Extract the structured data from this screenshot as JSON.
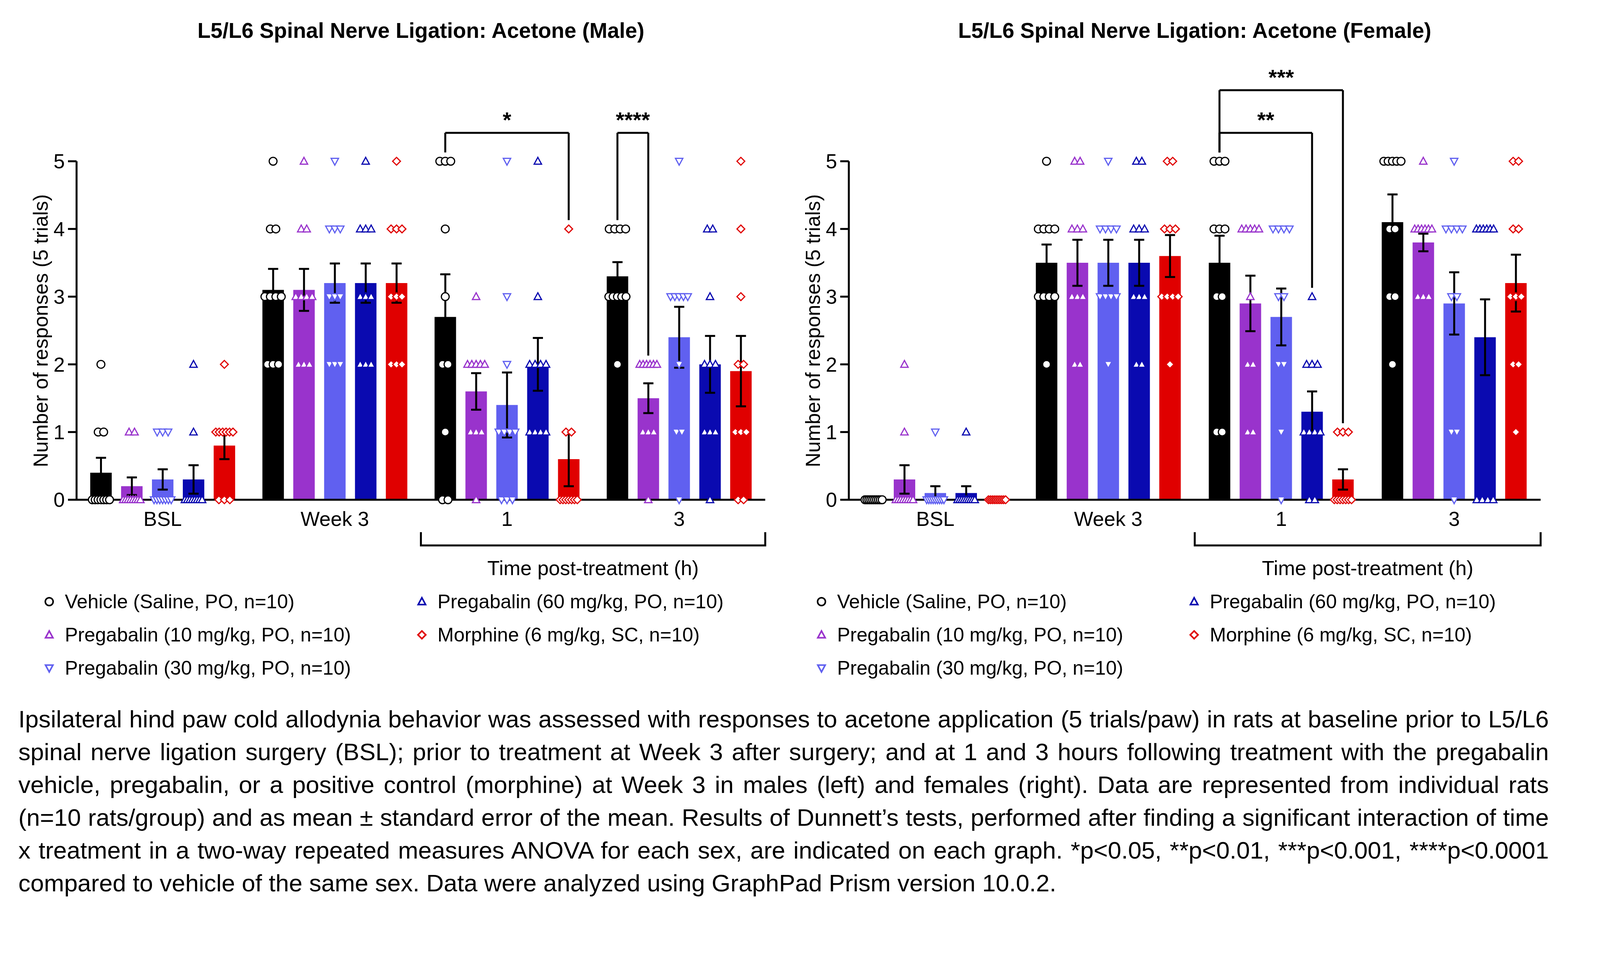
{
  "chart_data": [
    {
      "type": "bar",
      "title": "L5/L6 Spinal Nerve Ligation: Acetone (Male)",
      "y_label": "Number of responses (5 trials)",
      "x_label": "Time post-treatment (h)",
      "x_label_categories": [
        "1",
        "3"
      ],
      "categories": [
        "BSL",
        "Week 3",
        "1",
        "3"
      ],
      "ylim": [
        0,
        5
      ],
      "yticks": [
        0,
        1,
        2,
        3,
        4,
        5
      ],
      "grid": false,
      "legend": "bottom",
      "series": [
        {
          "name": "Vehicle (Saline, PO, n=10)",
          "color": "#000000",
          "marker": "circle",
          "values": [
            0.4,
            3.1,
            2.7,
            3.3
          ],
          "errors": [
            0.22,
            0.31,
            0.63,
            0.21
          ],
          "points": [
            [
              2,
              1,
              1,
              0,
              0,
              0,
              0,
              0,
              0,
              0
            ],
            [
              5,
              4,
              4,
              3,
              3,
              3,
              3,
              2,
              2,
              2
            ],
            [
              5,
              5,
              5,
              4,
              3,
              2,
              2,
              1,
              0,
              0
            ],
            [
              4,
              4,
              4,
              4,
              3,
              3,
              3,
              3,
              3,
              2
            ]
          ]
        },
        {
          "name": "Pregabalin (10 mg/kg, PO, n=10)",
          "color": "#9933cc",
          "marker": "triangle",
          "values": [
            0.2,
            3.1,
            1.6,
            1.5
          ],
          "errors": [
            0.13,
            0.31,
            0.27,
            0.22
          ],
          "points": [
            [
              1,
              1,
              0,
              0,
              0,
              0,
              0,
              0,
              0,
              0
            ],
            [
              5,
              4,
              4,
              3,
              3,
              3,
              3,
              2,
              2,
              2
            ],
            [
              3,
              2,
              2,
              2,
              2,
              2,
              1,
              1,
              1,
              0
            ],
            [
              2,
              2,
              2,
              2,
              2,
              2,
              1,
              1,
              1,
              0
            ]
          ]
        },
        {
          "name": "Pregabalin (30 mg/kg, PO, n=10)",
          "color": "#6060f0",
          "marker": "triangle-down",
          "values": [
            0.3,
            3.2,
            1.4,
            2.4
          ],
          "errors": [
            0.15,
            0.29,
            0.48,
            0.45
          ],
          "points": [
            [
              1,
              1,
              1,
              0,
              0,
              0,
              0,
              0,
              0,
              0
            ],
            [
              5,
              4,
              4,
              4,
              3,
              3,
              3,
              2,
              2,
              2
            ],
            [
              5,
              3,
              2,
              1,
              1,
              1,
              1,
              0,
              0,
              0
            ],
            [
              5,
              3,
              3,
              3,
              3,
              3,
              2,
              1,
              1,
              0
            ]
          ]
        },
        {
          "name": "Pregabalin (60 mg/kg, PO, n=10)",
          "color": "#0a0ab0",
          "marker": "triangle",
          "values": [
            0.3,
            3.2,
            2.0,
            2.0
          ],
          "errors": [
            0.21,
            0.29,
            0.39,
            0.42
          ],
          "points": [
            [
              2,
              1,
              0,
              0,
              0,
              0,
              0,
              0,
              0,
              0
            ],
            [
              5,
              4,
              4,
              4,
              3,
              3,
              3,
              2,
              2,
              2
            ],
            [
              5,
              3,
              2,
              2,
              2,
              2,
              1,
              1,
              1,
              1
            ],
            [
              4,
              4,
              3,
              2,
              2,
              2,
              1,
              1,
              1,
              0
            ]
          ]
        },
        {
          "name": "Morphine (6 mg/kg, SC, n=10)",
          "color": "#e00000",
          "marker": "diamond",
          "values": [
            0.8,
            3.2,
            0.6,
            1.9
          ],
          "errors": [
            0.2,
            0.29,
            0.4,
            0.52
          ],
          "points": [
            [
              2,
              1,
              1,
              1,
              1,
              1,
              1,
              0,
              0,
              0
            ],
            [
              5,
              4,
              4,
              4,
              3,
              3,
              3,
              2,
              2,
              2
            ],
            [
              4,
              1,
              1,
              0,
              0,
              0,
              0,
              0,
              0,
              0
            ],
            [
              5,
              4,
              3,
              2,
              2,
              1,
              1,
              1,
              0,
              0
            ]
          ]
        }
      ],
      "annotations": [
        {
          "text": "*",
          "category": "1",
          "series": [
            "Vehicle (Saline, PO, n=10)",
            "Morphine (6 mg/kg, SC, n=10)"
          ]
        },
        {
          "text": "****",
          "category": "3",
          "series": [
            "Vehicle (Saline, PO, n=10)",
            "Pregabalin (10 mg/kg, PO, n=10)"
          ]
        }
      ]
    },
    {
      "type": "bar",
      "title": "L5/L6 Spinal Nerve Ligation: Acetone (Female)",
      "y_label": "Number of responses (5 trials)",
      "x_label": "Time post-treatment (h)",
      "x_label_categories": [
        "1",
        "3"
      ],
      "categories": [
        "BSL",
        "Week 3",
        "1",
        "3"
      ],
      "ylim": [
        0,
        5
      ],
      "yticks": [
        0,
        1,
        2,
        3,
        4,
        5
      ],
      "grid": false,
      "legend": "bottom",
      "series": [
        {
          "name": "Vehicle (Saline, PO, n=10)",
          "color": "#000000",
          "marker": "circle",
          "values": [
            0,
            3.5,
            3.5,
            4.1
          ],
          "errors": [
            0,
            0.27,
            0.4,
            0.41
          ],
          "points": [
            [
              0,
              0,
              0,
              0,
              0,
              0,
              0,
              0,
              0,
              0
            ],
            [
              5,
              4,
              4,
              4,
              4,
              3,
              3,
              3,
              3,
              2
            ],
            [
              5,
              5,
              5,
              4,
              4,
              4,
              3,
              3,
              1,
              1
            ],
            [
              5,
              5,
              5,
              5,
              5,
              4,
              4,
              3,
              3,
              2
            ]
          ]
        },
        {
          "name": "Pregabalin (10 mg/kg, PO, n=10)",
          "color": "#9933cc",
          "marker": "triangle",
          "values": [
            0.3,
            3.5,
            2.9,
            3.8
          ],
          "errors": [
            0.21,
            0.34,
            0.41,
            0.13
          ],
          "points": [
            [
              2,
              1,
              0,
              0,
              0,
              0,
              0,
              0,
              0,
              0
            ],
            [
              5,
              5,
              4,
              4,
              4,
              3,
              3,
              3,
              2,
              2
            ],
            [
              4,
              4,
              4,
              4,
              4,
              3,
              2,
              2,
              1,
              1
            ],
            [
              5,
              4,
              4,
              4,
              4,
              4,
              4,
              3,
              3,
              3
            ]
          ]
        },
        {
          "name": "Pregabalin (30 mg/kg, PO, n=10)",
          "color": "#6060f0",
          "marker": "triangle-down",
          "values": [
            0.1,
            3.5,
            2.7,
            2.9
          ],
          "errors": [
            0.1,
            0.34,
            0.42,
            0.46
          ],
          "points": [
            [
              1,
              0,
              0,
              0,
              0,
              0,
              0,
              0,
              0,
              0
            ],
            [
              5,
              4,
              4,
              4,
              4,
              3,
              3,
              3,
              3,
              2
            ],
            [
              4,
              4,
              4,
              4,
              3,
              3,
              2,
              2,
              1,
              0
            ],
            [
              5,
              4,
              4,
              4,
              4,
              3,
              3,
              1,
              1,
              0
            ]
          ]
        },
        {
          "name": "Pregabalin (60 mg/kg, PO, n=10)",
          "color": "#0a0ab0",
          "marker": "triangle",
          "values": [
            0.1,
            3.5,
            1.3,
            2.4
          ],
          "errors": [
            0.1,
            0.34,
            0.3,
            0.56
          ],
          "points": [
            [
              1,
              0,
              0,
              0,
              0,
              0,
              0,
              0,
              0,
              0
            ],
            [
              5,
              5,
              4,
              4,
              4,
              3,
              3,
              3,
              2,
              2
            ],
            [
              3,
              2,
              2,
              2,
              1,
              1,
              1,
              1,
              0,
              0
            ],
            [
              4,
              4,
              4,
              4,
              4,
              4,
              0,
              0,
              0,
              0
            ]
          ]
        },
        {
          "name": "Morphine (6 mg/kg, SC, n=10)",
          "color": "#e00000",
          "marker": "diamond",
          "values": [
            0,
            3.6,
            0.3,
            3.2
          ],
          "errors": [
            0,
            0.31,
            0.15,
            0.42
          ],
          "points": [
            [
              0,
              0,
              0,
              0,
              0,
              0,
              0,
              0,
              0,
              0
            ],
            [
              5,
              5,
              4,
              4,
              4,
              3,
              3,
              3,
              3,
              2
            ],
            [
              1,
              1,
              1,
              0,
              0,
              0,
              0,
              0,
              0,
              0
            ],
            [
              5,
              5,
              4,
              4,
              3,
              3,
              3,
              2,
              2,
              1
            ]
          ]
        }
      ],
      "annotations": [
        {
          "text": "**",
          "category": "1",
          "series": [
            "Vehicle (Saline, PO, n=10)",
            "Pregabalin (60 mg/kg, PO, n=10)"
          ]
        },
        {
          "text": "***",
          "category": "1",
          "series": [
            "Vehicle (Saline, PO, n=10)",
            "Morphine (6 mg/kg, SC, n=10)"
          ]
        }
      ]
    }
  ],
  "caption": "Ipsilateral hind paw cold allodynia behavior was assessed with responses to acetone application (5 trials/paw) in rats at baseline prior to L5/L6 spinal nerve ligation surgery (BSL); prior to treatment at Week 3 after surgery; and at 1 and 3 hours following treatment with the pregabalin vehicle, pregabalin, or a positive control (morphine) at Week 3 in males (left) and females (right). Data are represented from individual rats (n=10 rats/group) and as mean ± standard error of the mean. Results of Dunnett’s tests, performed after finding a significant interaction of time x treatment in a two-way repeated measures ANOVA for each sex, are indicated on each graph. *p<0.05, **p<0.01, ***p<0.001, ****p<0.0001 compared to vehicle of the same sex. Data were analyzed using GraphPad Prism version 10.0.2."
}
